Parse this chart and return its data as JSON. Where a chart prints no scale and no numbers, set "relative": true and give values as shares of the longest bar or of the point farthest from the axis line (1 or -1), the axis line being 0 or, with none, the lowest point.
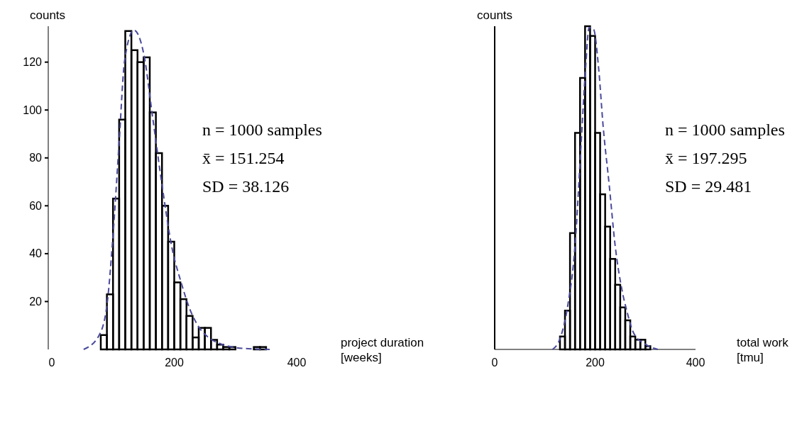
{
  "chart_data": [
    {
      "type": "histogram",
      "ylabel": "counts",
      "xlabel": "project duration\n[weeks]",
      "xlim": [
        0,
        400
      ],
      "xticks": [
        0,
        200,
        400
      ],
      "ylim": [
        0,
        135
      ],
      "yticks": [
        20,
        40,
        60,
        80,
        100,
        120
      ],
      "annotations": [
        "n = 1000 samples",
        "x̄ = 151.254",
        "SD = 38.126"
      ],
      "series": [
        {
          "type": "histogram",
          "color": "#000000",
          "bins": [
            80,
            90,
            100,
            110,
            120,
            130,
            140,
            150,
            160,
            170,
            180,
            190,
            200,
            210,
            220,
            230,
            240,
            250,
            260,
            270,
            280,
            290,
            300,
            310,
            320,
            330,
            340,
            350
          ],
          "values": [
            6,
            23,
            63,
            96,
            133,
            125,
            120,
            122,
            99,
            82,
            60,
            45,
            28,
            21,
            14,
            5,
            9,
            9,
            4,
            2,
            1,
            1,
            0,
            0,
            0,
            1,
            1
          ]
        },
        {
          "type": "line",
          "color": "#4a4a9c",
          "line_style": "dashed",
          "x": [
            52,
            77,
            90,
            100,
            110,
            119,
            134,
            150,
            165,
            181,
            196,
            211,
            226,
            242,
            257,
            276,
            314,
            356
          ],
          "values": [
            0,
            5.8,
            18.4,
            47.7,
            86.6,
            120.8,
            133.4,
            123.7,
            96.4,
            67,
            42.8,
            28.2,
            16.5,
            8.7,
            4.8,
            2.3,
            0.4,
            0
          ]
        }
      ]
    },
    {
      "type": "histogram",
      "ylabel": "counts",
      "xlabel": "total work\n[tmu]",
      "xlim": [
        0,
        400
      ],
      "xticks": [
        0,
        200,
        400
      ],
      "relative": true,
      "annotations": [
        "n = 1000 samples",
        "x̄ = 197.295",
        "SD = 29.481"
      ],
      "series": [
        {
          "type": "histogram",
          "color": "#000000",
          "bins": [
            130,
            140,
            150,
            160,
            170,
            180,
            190,
            200,
            210,
            220,
            230,
            240,
            250,
            260,
            270,
            280,
            290,
            300,
            310
          ],
          "values": [
            0.04,
            0.12,
            0.36,
            0.67,
            0.84,
            1,
            0.97,
            0.67,
            0.48,
            0.38,
            0.28,
            0.2,
            0.13,
            0.09,
            0.04,
            0.03,
            0.03,
            0.01
          ]
        },
        {
          "type": "line",
          "color": "#4a4a9c",
          "line_style": "dashed",
          "x": [
            115,
            131,
            146,
            160,
            171.5,
            181,
            188,
            197,
            207,
            216,
            228,
            240,
            254,
            263,
            277,
            301,
            325
          ],
          "values": [
            0,
            0.037,
            0.14,
            0.32,
            0.62,
            0.87,
            0.996,
            0.99,
            0.87,
            0.69,
            0.51,
            0.32,
            0.18,
            0.12,
            0.05,
            0.015,
            0
          ]
        }
      ]
    }
  ]
}
